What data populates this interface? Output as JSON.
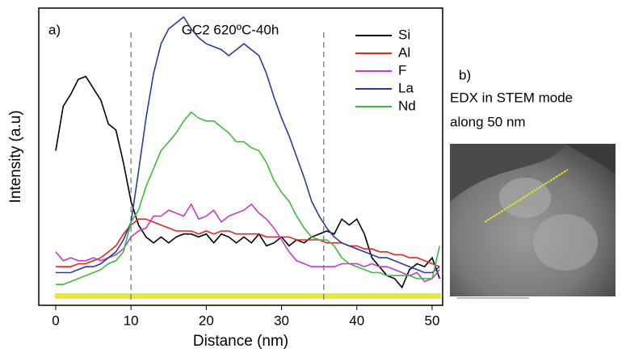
{
  "chart_data": {
    "type": "line",
    "title": "GC2 620ºC-40h",
    "panel_label": "a)",
    "x_label": "Distance (nm)",
    "y_label": "Intensity (a.u)",
    "xlim": [
      -2.25,
      51.4
    ],
    "ylim": [
      0,
      100
    ],
    "xticks": [
      0,
      10,
      20,
      30,
      40,
      50
    ],
    "reference_lines": [
      10,
      35.6
    ],
    "x": [
      0,
      1,
      2,
      3,
      4,
      5,
      6,
      7,
      8,
      9,
      10,
      11,
      12,
      13,
      14,
      15,
      16,
      17,
      18,
      19,
      20,
      21,
      22,
      23,
      24,
      25,
      26,
      27,
      28,
      29,
      30,
      31,
      32,
      33,
      34,
      35,
      36,
      37,
      38,
      39,
      40,
      41,
      42,
      43,
      44,
      45,
      46,
      47,
      48,
      49,
      50,
      51
    ],
    "series": [
      {
        "name": "Si",
        "color": "#000000",
        "values": [
          52,
          67,
          71,
          76,
          77,
          73,
          69,
          61,
          59,
          48,
          35,
          27,
          23,
          21,
          23,
          21,
          23,
          24,
          24,
          23,
          24,
          21,
          24,
          23,
          21,
          23,
          21,
          24,
          20,
          21,
          23,
          20,
          22,
          21,
          23,
          24,
          25,
          24,
          29,
          27,
          29,
          24,
          16,
          13,
          10,
          9,
          6,
          12,
          14,
          13,
          16,
          9
        ]
      },
      {
        "name": "Al",
        "color": "#e8231c",
        "values": [
          13,
          13,
          13,
          14,
          14,
          15,
          16,
          18,
          20,
          24,
          27,
          29,
          29,
          28,
          27,
          26,
          25,
          25,
          25,
          24,
          25,
          24,
          25,
          25,
          24,
          24,
          24,
          24,
          23,
          23,
          23,
          23,
          22,
          22,
          22,
          22,
          21,
          21,
          21,
          20,
          20,
          19,
          19,
          18,
          18,
          17,
          17,
          16,
          16,
          15,
          14,
          13
        ]
      },
      {
        "name": "F",
        "color": "#c03cc0",
        "values": [
          18,
          15,
          16,
          15,
          15,
          16,
          15,
          16,
          17,
          19,
          23,
          25,
          26,
          30,
          30,
          32,
          31,
          30,
          34,
          29,
          30,
          32,
          28,
          30,
          31,
          32,
          34,
          31,
          29,
          26,
          22,
          18,
          15,
          14,
          13,
          13,
          13,
          13,
          14,
          14,
          14,
          13,
          14,
          13,
          13,
          12,
          11,
          10,
          11,
          8,
          9,
          12
        ]
      },
      {
        "name": "La",
        "color": "#2b3b9c",
        "values": [
          11,
          11,
          11,
          12,
          13,
          13,
          14,
          16,
          18,
          22,
          28,
          45,
          63,
          78,
          88,
          93,
          95,
          97,
          93,
          90,
          88,
          87,
          86,
          84,
          86,
          88,
          86,
          84,
          78,
          70,
          63,
          57,
          50,
          43,
          35,
          30,
          26,
          23,
          21,
          20,
          19,
          18,
          17,
          16,
          16,
          15,
          14,
          13,
          12,
          11,
          11,
          13
        ]
      },
      {
        "name": "Nd",
        "color": "#3cbb3c",
        "values": [
          7,
          7,
          8,
          9,
          10,
          11,
          12,
          14,
          15,
          18,
          28,
          32,
          40,
          46,
          52,
          55,
          58,
          62,
          65,
          63,
          62,
          62,
          60,
          58,
          55,
          55,
          53,
          52,
          48,
          42,
          38,
          35,
          30,
          26,
          23,
          22,
          22,
          20,
          16,
          14,
          13,
          12,
          11,
          11,
          10,
          10,
          10,
          10,
          9,
          9,
          9,
          20
        ]
      }
    ],
    "legend": "top-right"
  },
  "side_panel": {
    "label": "b)",
    "lines": [
      "EDX in STEM mode",
      "along 50 nm"
    ]
  }
}
